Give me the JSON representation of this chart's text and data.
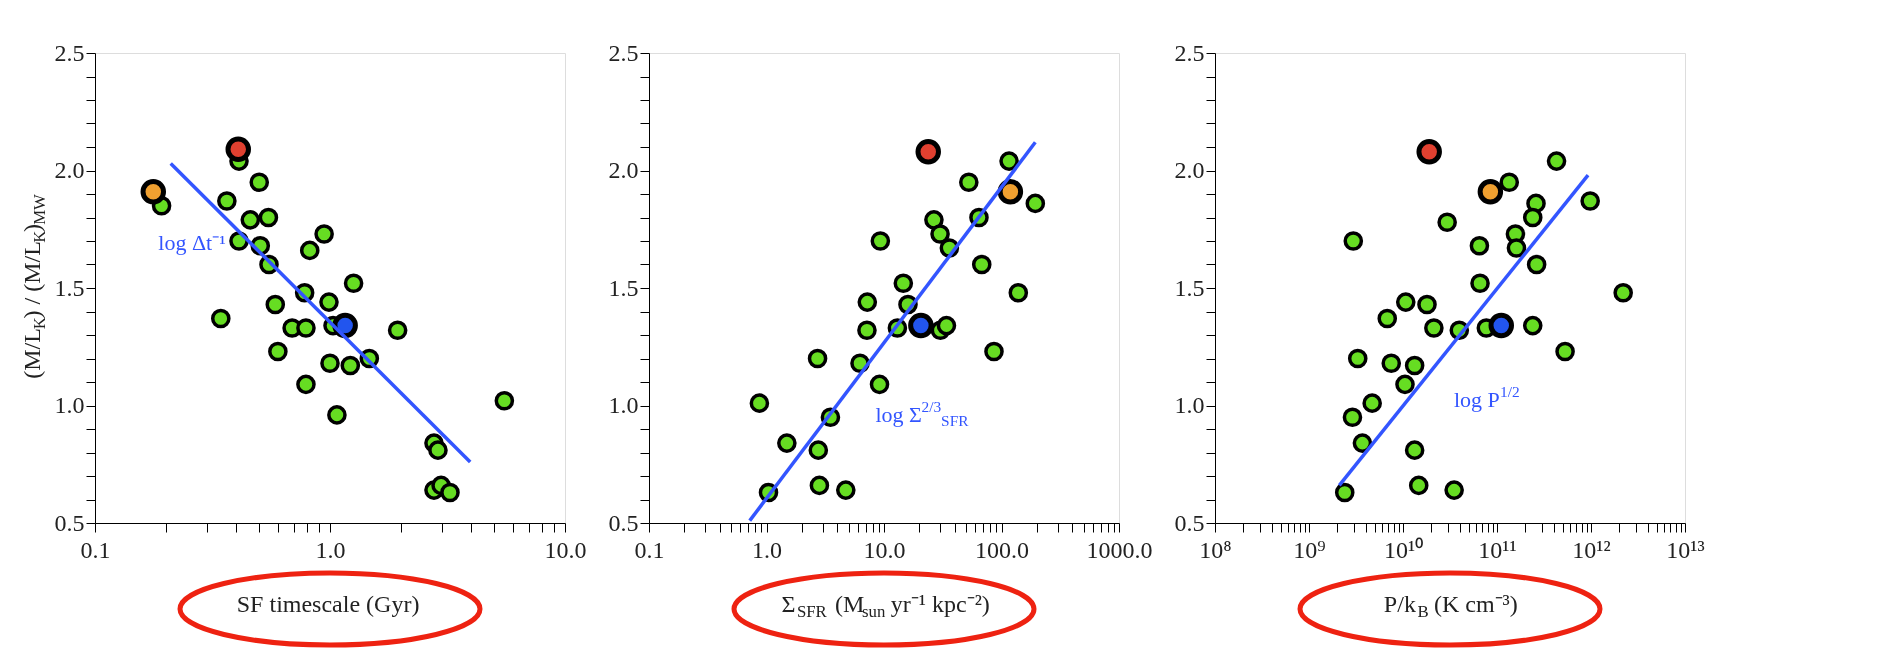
{
  "chart_data": [
    {
      "type": "scatter",
      "xlabel": "SF timescale (Gyr)",
      "ylabel": "(M/L$_{K}$) / (M/L$_{K}$)$_{MW}$",
      "log": "x",
      "grid": false,
      "marker": "circle",
      "xlim": [
        0.1,
        10
      ],
      "ylim": [
        0.5,
        2.5
      ],
      "xticks": [
        {
          "value": 0.1,
          "label": "0.1"
        },
        {
          "value": 0.2,
          "label": null
        },
        {
          "value": 0.3,
          "label": null
        },
        {
          "value": 0.4,
          "label": null
        },
        {
          "value": 0.5,
          "label": null
        },
        {
          "value": 0.6,
          "label": null
        },
        {
          "value": 0.7,
          "label": null
        },
        {
          "value": 0.8,
          "label": null
        },
        {
          "value": 0.9,
          "label": null
        },
        {
          "value": 1,
          "label": "1.0"
        },
        {
          "value": 2,
          "label": null
        },
        {
          "value": 3,
          "label": null
        },
        {
          "value": 4,
          "label": null
        },
        {
          "value": 5,
          "label": null
        },
        {
          "value": 6,
          "label": null
        },
        {
          "value": 7,
          "label": null
        },
        {
          "value": 8,
          "label": null
        },
        {
          "value": 9,
          "label": null
        },
        {
          "value": 10,
          "label": "10.0"
        }
      ],
      "yticks": [
        {
          "value": 0.5,
          "label": "0.5"
        },
        {
          "value": 0.6,
          "label": null
        },
        {
          "value": 0.7,
          "label": null
        },
        {
          "value": 0.8,
          "label": null
        },
        {
          "value": 0.9,
          "label": null
        },
        {
          "value": 1.0,
          "label": "1.0"
        },
        {
          "value": 1.1,
          "label": null
        },
        {
          "value": 1.2,
          "label": null
        },
        {
          "value": 1.3,
          "label": null
        },
        {
          "value": 1.4,
          "label": null
        },
        {
          "value": 1.5,
          "label": "1.5"
        },
        {
          "value": 1.6,
          "label": null
        },
        {
          "value": 1.7,
          "label": null
        },
        {
          "value": 1.8,
          "label": null
        },
        {
          "value": 1.9,
          "label": null
        },
        {
          "value": 2.0,
          "label": "2.0"
        },
        {
          "value": 2.1,
          "label": null
        },
        {
          "value": 2.2,
          "label": null
        },
        {
          "value": 2.3,
          "label": null
        },
        {
          "value": 2.4,
          "label": null
        },
        {
          "value": 2.5,
          "label": "2.5"
        }
      ],
      "series": [
        {
          "color": "#66dd22",
          "x": [
            0.192,
            0.41,
            0.5,
            0.364,
            0.458,
            0.547,
            0.41,
            0.505,
            0.55,
            0.944,
            0.82,
            0.343,
            0.585,
            0.78,
            0.99,
            1.26,
            0.69,
            0.79,
            1.03,
            1.94,
            0.6,
            1.0,
            1.22,
            1.47,
            0.79,
            1.07,
            5.52,
            2.77,
            2.88,
            2.77,
            2.97,
            3.24
          ],
          "values": [
            1.85,
            2.04,
            1.95,
            1.87,
            1.79,
            1.8,
            1.7,
            1.68,
            1.6,
            1.73,
            1.66,
            1.37,
            1.43,
            1.48,
            1.44,
            1.52,
            1.33,
            1.33,
            1.34,
            1.32,
            1.23,
            1.18,
            1.17,
            1.2,
            1.09,
            0.96,
            1.02,
            0.84,
            0.81,
            0.64,
            0.66,
            0.63
          ]
        },
        {
          "color": "#f0a030",
          "x": [
            0.177
          ],
          "values": [
            1.91
          ]
        },
        {
          "color": "#e04030",
          "x": [
            0.407
          ],
          "values": [
            2.09
          ]
        },
        {
          "color": "#2255ee",
          "x": [
            1.16
          ],
          "values": [
            1.34
          ]
        },
        {
          "type": "line",
          "marker": "none",
          "color": "#3355ff",
          "x": [
            0.21,
            3.95
          ],
          "values": [
            2.03,
            0.76
          ]
        }
      ],
      "annotations": [
        "log Δt⁻¹"
      ]
    },
    {
      "type": "scatter",
      "xlabel": "Σ$_{SFR}$ (M$_{sun}$ yr⁻¹ kpc⁻²)",
      "log": "x",
      "grid": false,
      "marker": "circle",
      "xlim": [
        0.1,
        1000
      ],
      "ylim": [
        0.5,
        2.5
      ],
      "xticks": [
        {
          "value": 0.1,
          "label": "0.1"
        },
        {
          "value": 0.2,
          "label": null
        },
        {
          "value": 0.3,
          "label": null
        },
        {
          "value": 0.4,
          "label": null
        },
        {
          "value": 0.5,
          "label": null
        },
        {
          "value": 0.6,
          "label": null
        },
        {
          "value": 0.7,
          "label": null
        },
        {
          "value": 0.8,
          "label": null
        },
        {
          "value": 0.9,
          "label": null
        },
        {
          "value": 1,
          "label": "1.0"
        },
        {
          "value": 2,
          "label": null
        },
        {
          "value": 3,
          "label": null
        },
        {
          "value": 4,
          "label": null
        },
        {
          "value": 5,
          "label": null
        },
        {
          "value": 6,
          "label": null
        },
        {
          "value": 7,
          "label": null
        },
        {
          "value": 8,
          "label": null
        },
        {
          "value": 9,
          "label": null
        },
        {
          "value": 10,
          "label": "10.0"
        },
        {
          "value": 20,
          "label": null
        },
        {
          "value": 30,
          "label": null
        },
        {
          "value": 40,
          "label": null
        },
        {
          "value": 50,
          "label": null
        },
        {
          "value": 60,
          "label": null
        },
        {
          "value": 70,
          "label": null
        },
        {
          "value": 80,
          "label": null
        },
        {
          "value": 90,
          "label": null
        },
        {
          "value": 100,
          "label": "100.0"
        },
        {
          "value": 200,
          "label": null
        },
        {
          "value": 300,
          "label": null
        },
        {
          "value": 400,
          "label": null
        },
        {
          "value": 500,
          "label": null
        },
        {
          "value": 600,
          "label": null
        },
        {
          "value": 700,
          "label": null
        },
        {
          "value": 800,
          "label": null
        },
        {
          "value": 900,
          "label": null
        },
        {
          "value": 1000,
          "label": "1000.0"
        }
      ],
      "yticks": [
        {
          "value": 0.5,
          "label": "0.5"
        },
        {
          "value": 0.6,
          "label": null
        },
        {
          "value": 0.7,
          "label": null
        },
        {
          "value": 0.8,
          "label": null
        },
        {
          "value": 0.9,
          "label": null
        },
        {
          "value": 1.0,
          "label": "1.0"
        },
        {
          "value": 1.1,
          "label": null
        },
        {
          "value": 1.2,
          "label": null
        },
        {
          "value": 1.3,
          "label": null
        },
        {
          "value": 1.4,
          "label": null
        },
        {
          "value": 1.5,
          "label": "1.5"
        },
        {
          "value": 1.6,
          "label": null
        },
        {
          "value": 1.7,
          "label": null
        },
        {
          "value": 1.8,
          "label": null
        },
        {
          "value": 1.9,
          "label": null
        },
        {
          "value": 2.0,
          "label": "2.0"
        },
        {
          "value": 2.1,
          "label": null
        },
        {
          "value": 2.2,
          "label": null
        },
        {
          "value": 2.3,
          "label": null
        },
        {
          "value": 2.4,
          "label": null
        },
        {
          "value": 2.5,
          "label": "2.5"
        }
      ],
      "series": [
        {
          "color": "#66dd22",
          "x": [
            116,
            52.7,
            194,
            26.6,
            64.3,
            30.0,
            36.0,
            9.31,
            67.9,
            14.6,
            139,
            7.21,
            16.0,
            13.0,
            30.2,
            34.0,
            7.16,
            86.3,
            2.72,
            6.25,
            9.16,
            0.87,
            3.5,
            1.49,
            2.76,
            2.82,
            4.73,
            1.04
          ],
          "values": [
            2.04,
            1.95,
            1.86,
            1.79,
            1.8,
            1.73,
            1.67,
            1.7,
            1.6,
            1.52,
            1.48,
            1.44,
            1.43,
            1.33,
            1.32,
            1.34,
            1.32,
            1.23,
            1.2,
            1.18,
            1.09,
            1.01,
            0.95,
            0.84,
            0.81,
            0.66,
            0.64,
            0.63
          ]
        },
        {
          "color": "#f0a030",
          "x": [
            119
          ],
          "values": [
            1.91
          ]
        },
        {
          "color": "#e04030",
          "x": [
            23.8
          ],
          "values": [
            2.08
          ]
        },
        {
          "color": "#2255ee",
          "x": [
            20.6
          ],
          "values": [
            1.34
          ]
        },
        {
          "type": "line",
          "marker": "none",
          "color": "#3355ff",
          "x": [
            0.72,
            194
          ],
          "values": [
            0.51,
            2.12
          ]
        }
      ],
      "annotations": [
        "log Σ$^{2/3}$$_{SFR}$"
      ]
    },
    {
      "type": "scatter",
      "xlabel": "P/k$_{B}$ (K cm⁻³)",
      "log": "x",
      "grid": false,
      "marker": "circle",
      "xlim": [
        100000000.0,
        10000000000000.0
      ],
      "ylim": [
        0.5,
        2.5
      ],
      "xticks": [
        {
          "value": 100000000.0,
          "label": "10⁸"
        },
        {
          "value": 200000000.0,
          "label": null
        },
        {
          "value": 300000000.0,
          "label": null
        },
        {
          "value": 400000000.0,
          "label": null
        },
        {
          "value": 500000000.0,
          "label": null
        },
        {
          "value": 600000000.0,
          "label": null
        },
        {
          "value": 700000000.0,
          "label": null
        },
        {
          "value": 800000000.0,
          "label": null
        },
        {
          "value": 900000000.0,
          "label": null
        },
        {
          "value": 1000000000.0,
          "label": "10⁹"
        },
        {
          "value": 2000000000.0,
          "label": null
        },
        {
          "value": 3000000000.0,
          "label": null
        },
        {
          "value": 4000000000.0,
          "label": null
        },
        {
          "value": 5000000000.0,
          "label": null
        },
        {
          "value": 6000000000.0,
          "label": null
        },
        {
          "value": 7000000000.0,
          "label": null
        },
        {
          "value": 8000000000.0,
          "label": null
        },
        {
          "value": 9000000000.0,
          "label": null
        },
        {
          "value": 10000000000.0,
          "label": "10¹⁰"
        },
        {
          "value": 20000000000.0,
          "label": null
        },
        {
          "value": 30000000000.0,
          "label": null
        },
        {
          "value": 40000000000.0,
          "label": null
        },
        {
          "value": 50000000000.0,
          "label": null
        },
        {
          "value": 60000000000.0,
          "label": null
        },
        {
          "value": 70000000000.0,
          "label": null
        },
        {
          "value": 80000000000.0,
          "label": null
        },
        {
          "value": 90000000000.0,
          "label": null
        },
        {
          "value": 100000000000.0,
          "label": "10¹¹"
        },
        {
          "value": 200000000000.0,
          "label": null
        },
        {
          "value": 300000000000.0,
          "label": null
        },
        {
          "value": 400000000000.0,
          "label": null
        },
        {
          "value": 500000000000.0,
          "label": null
        },
        {
          "value": 600000000000.0,
          "label": null
        },
        {
          "value": 700000000000.0,
          "label": null
        },
        {
          "value": 800000000000.0,
          "label": null
        },
        {
          "value": 900000000000.0,
          "label": null
        },
        {
          "value": 1000000000000.0,
          "label": "10¹²"
        },
        {
          "value": 2000000000000.0,
          "label": null
        },
        {
          "value": 3000000000000.0,
          "label": null
        },
        {
          "value": 4000000000000.0,
          "label": null
        },
        {
          "value": 5000000000000.0,
          "label": null
        },
        {
          "value": 6000000000000.0,
          "label": null
        },
        {
          "value": 7000000000000.0,
          "label": null
        },
        {
          "value": 8000000000000.0,
          "label": null
        },
        {
          "value": 9000000000000.0,
          "label": null
        },
        {
          "value": 10000000000000.0,
          "label": "10¹³"
        }
      ],
      "yticks": [
        {
          "value": 0.5,
          "label": "0.5"
        },
        {
          "value": 0.6,
          "label": null
        },
        {
          "value": 0.7,
          "label": null
        },
        {
          "value": 0.8,
          "label": null
        },
        {
          "value": 0.9,
          "label": null
        },
        {
          "value": 1.0,
          "label": "1.0"
        },
        {
          "value": 1.1,
          "label": null
        },
        {
          "value": 1.2,
          "label": null
        },
        {
          "value": 1.3,
          "label": null
        },
        {
          "value": 1.4,
          "label": null
        },
        {
          "value": 1.5,
          "label": "1.5"
        },
        {
          "value": 1.6,
          "label": null
        },
        {
          "value": 1.7,
          "label": null
        },
        {
          "value": 1.8,
          "label": null
        },
        {
          "value": 1.9,
          "label": null
        },
        {
          "value": 2.0,
          "label": "2.0"
        },
        {
          "value": 2.1,
          "label": null
        },
        {
          "value": 2.2,
          "label": null
        },
        {
          "value": 2.3,
          "label": null
        },
        {
          "value": 2.4,
          "label": null
        },
        {
          "value": 2.5,
          "label": "2.5"
        }
      ],
      "series": [
        {
          "color": "#66dd22",
          "x": [
            430000000000.0,
            135000000000.0,
            260000000000.0,
            980000000000.0,
            240000000000.0,
            29500000000.0,
            157000000000.0,
            161000000000.0,
            65000000000.0,
            2960000000.0,
            264000000000.0,
            66000000000.0,
            2200000000000.0,
            10700000000.0,
            18000000000.0,
            6800000000.0,
            21300000000.0,
            39700000000.0,
            77000000000.0,
            240000000000.0,
            530000000000.0,
            3300000000.0,
            7500000000.0,
            13300000000.0,
            10500000000.0,
            4700000000.0,
            2900000000.0,
            3700000000.0,
            13300000000.0,
            14700000000.0,
            35000000000.0,
            2400000000.0
          ],
          "values": [
            2.04,
            1.95,
            1.86,
            1.87,
            1.8,
            1.78,
            1.73,
            1.67,
            1.68,
            1.7,
            1.6,
            1.52,
            1.48,
            1.44,
            1.43,
            1.37,
            1.33,
            1.32,
            1.33,
            1.34,
            1.23,
            1.2,
            1.18,
            1.17,
            1.09,
            1.01,
            0.95,
            0.84,
            0.81,
            0.66,
            0.64,
            0.63
          ]
        },
        {
          "color": "#f0a030",
          "x": [
            85000000000.0
          ],
          "values": [
            1.91
          ]
        },
        {
          "color": "#e04030",
          "x": [
            19000000000.0
          ],
          "values": [
            2.08
          ]
        },
        {
          "color": "#2255ee",
          "x": [
            111000000000.0
          ],
          "values": [
            1.34
          ]
        },
        {
          "type": "line",
          "marker": "none",
          "color": "#3355ff",
          "x": [
            2100000000.0,
            930000000000.0
          ],
          "values": [
            0.66,
            1.98
          ]
        }
      ],
      "annotations": [
        "log P$^{1/2}$"
      ]
    }
  ]
}
